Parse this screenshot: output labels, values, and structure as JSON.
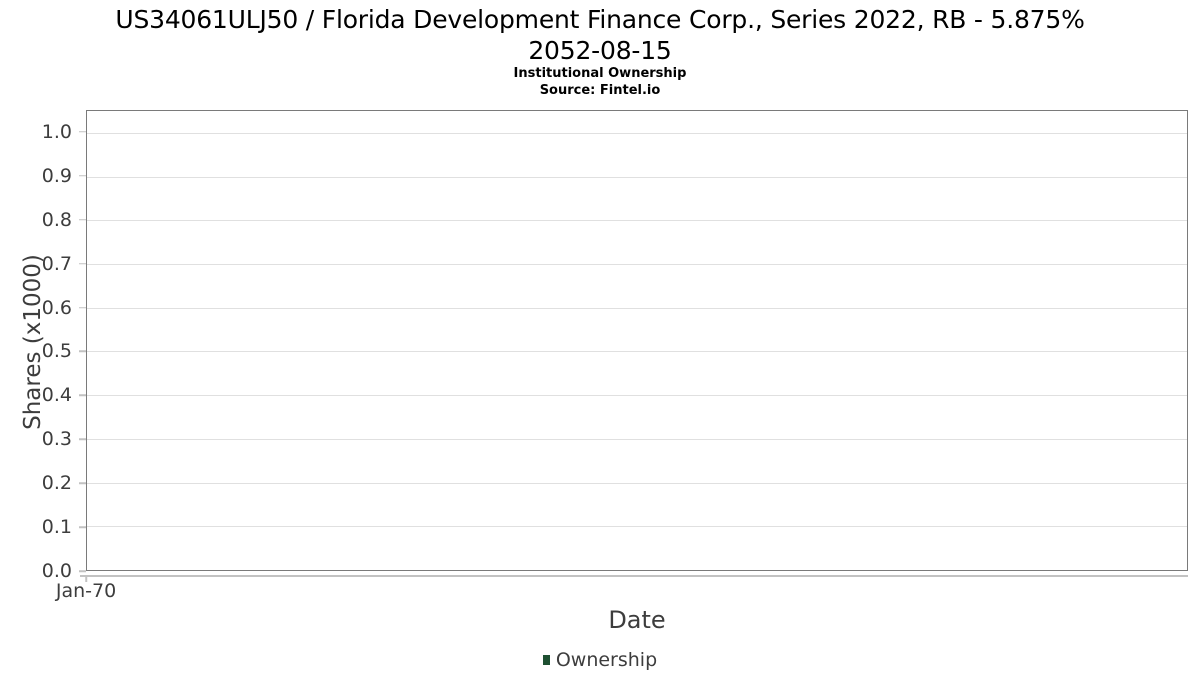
{
  "header": {
    "title_line1": "US34061ULJ50 / Florida Development Finance Corp., Series 2022, RB - 5.875%",
    "title_line2": "2052-08-15",
    "subtitle": "Institutional Ownership",
    "source": "Source: Fintel.io"
  },
  "style": {
    "title_color": "#000000",
    "text_color": "#3d3d3d",
    "grid_color": "#e0e0e0",
    "axis_border_color": "#7a7a7a",
    "tick_color": "#c2c2c2",
    "page_bg": "#ffffff",
    "series_green": "#1e5032"
  },
  "chart_data": {
    "type": "line",
    "title": "US34061ULJ50 / Florida Development Finance Corp., Series 2022, RB - 5.875% 2052-08-15",
    "subtitle": "Institutional Ownership",
    "source": "Source: Fintel.io",
    "xlabel": "Date",
    "ylabel": "Shares (x1000)",
    "ylim": [
      0,
      1.05
    ],
    "grid": true,
    "y_ticks": [
      {
        "value": 0.0,
        "label": "0.0"
      },
      {
        "value": 0.1,
        "label": "0.1"
      },
      {
        "value": 0.2,
        "label": "0.2"
      },
      {
        "value": 0.3,
        "label": "0.3"
      },
      {
        "value": 0.4,
        "label": "0.4"
      },
      {
        "value": 0.5,
        "label": "0.5"
      },
      {
        "value": 0.6,
        "label": "0.6"
      },
      {
        "value": 0.7,
        "label": "0.7"
      },
      {
        "value": 0.8,
        "label": "0.8"
      },
      {
        "value": 0.9,
        "label": "0.9"
      },
      {
        "value": 1.0,
        "label": "1.0"
      }
    ],
    "x_ticks": [
      {
        "pos": 0,
        "label": "Jan-70"
      }
    ],
    "legend": {
      "position": "bottom",
      "items": [
        {
          "label": "Ownership",
          "color": "#1e5032"
        }
      ]
    },
    "series": [
      {
        "name": "Ownership",
        "color": "#1e5032",
        "x": [],
        "values": []
      }
    ]
  }
}
